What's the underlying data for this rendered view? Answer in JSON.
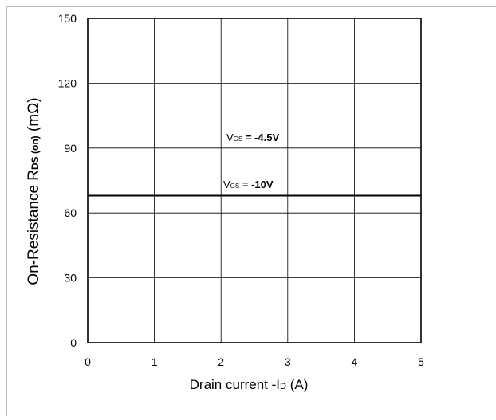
{
  "chart_data": {
    "type": "line",
    "title": "",
    "xlabel": {
      "main": "Drain current -I",
      "sub": "D",
      "unit": " (A)"
    },
    "ylabel": {
      "main": "On-Resistance R",
      "sub": "DS (on)",
      "unit": " (mΩ)"
    },
    "xlim": [
      0,
      5
    ],
    "ylim": [
      0,
      150
    ],
    "x_ticks": [
      0,
      1,
      2,
      3,
      4,
      5
    ],
    "y_ticks": [
      0,
      30,
      60,
      90,
      120,
      150
    ],
    "grid": true,
    "series": [
      {
        "name": "VGS = -4.5V",
        "label_parts": {
          "main": "V",
          "sub": "GS",
          "rest": "= -4.5V"
        },
        "x": [
          0,
          5
        ],
        "values": [
          68,
          68
        ],
        "color": "#000000"
      },
      {
        "name": "VGS = -10V",
        "label_parts": {
          "main": "V",
          "sub": "GS",
          "rest": "= -10V"
        },
        "x": [
          0,
          5
        ],
        "values": [
          68,
          68
        ],
        "color": "#000000"
      }
    ]
  }
}
